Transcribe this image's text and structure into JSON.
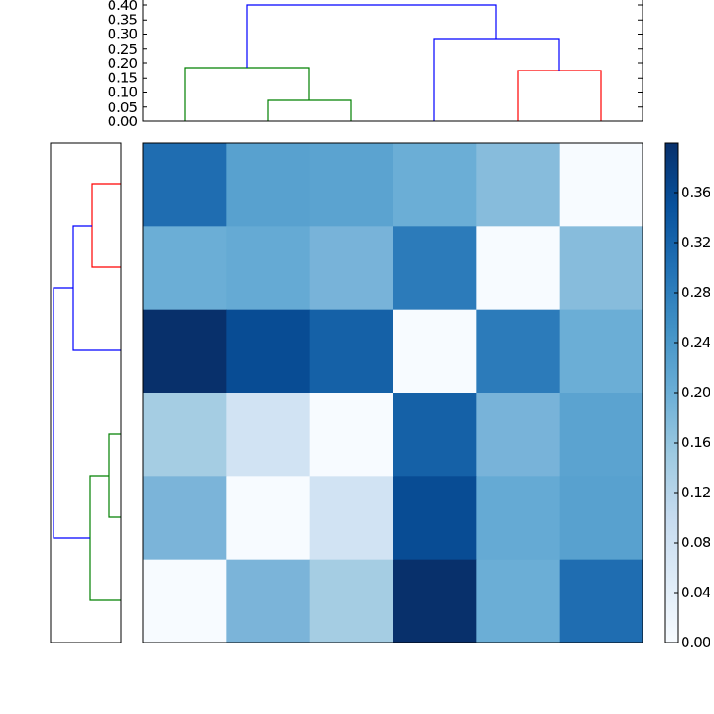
{
  "chart_data": [
    {
      "type": "dendrogram",
      "position": "top",
      "orientation": "vertical",
      "ylim": [
        0,
        0.4
      ],
      "yticks": [
        "0.00",
        "0.05",
        "0.10",
        "0.15",
        "0.20",
        "0.25",
        "0.30",
        "0.35",
        "0.40"
      ],
      "leaves": 6,
      "links": [
        {
          "left": 1,
          "right": 2,
          "height": 0.075,
          "color": "#008000"
        },
        {
          "left": 0,
          "right": "1-2",
          "height": 0.185,
          "color": "#008000"
        },
        {
          "left": 4,
          "right": 5,
          "height": 0.175,
          "color": "#ff0000"
        },
        {
          "left": 3,
          "right": "4-5",
          "height": 0.28,
          "color": "#0000ff"
        },
        {
          "left": "0-1-2",
          "right": "3-4-5",
          "height": 0.4,
          "color": "#0000ff"
        }
      ]
    },
    {
      "type": "dendrogram",
      "position": "left",
      "orientation": "horizontal",
      "leaves": 6,
      "links": [
        {
          "top": 0,
          "bottom": 1,
          "height": 0.175,
          "color": "#ff0000"
        },
        {
          "top": "0-1",
          "bottom": 2,
          "height": 0.28,
          "color": "#0000ff"
        },
        {
          "top": 3,
          "bottom": 4,
          "height": 0.075,
          "color": "#008000"
        },
        {
          "top": "3-4",
          "bottom": 5,
          "height": 0.185,
          "color": "#008000"
        },
        {
          "top": "0-1-2",
          "bottom": "3-4-5",
          "height": 0.4,
          "color": "#0000ff"
        }
      ]
    },
    {
      "type": "heatmap",
      "colormap": "Blues",
      "vmin": 0.0,
      "vmax": 0.4,
      "rows": 6,
      "cols": 6,
      "values": [
        [
          0.31,
          0.22,
          0.22,
          0.19,
          0.16,
          0.0
        ],
        [
          0.19,
          0.2,
          0.17,
          0.28,
          0.0,
          0.16
        ],
        [
          0.4,
          0.36,
          0.33,
          0.0,
          0.28,
          0.19
        ],
        [
          0.12,
          0.07,
          0.0,
          0.33,
          0.17,
          0.22
        ],
        [
          0.17,
          0.0,
          0.07,
          0.36,
          0.2,
          0.22
        ],
        [
          0.0,
          0.17,
          0.12,
          0.4,
          0.19,
          0.31
        ]
      ],
      "colors": [
        [
          "#1f6db1",
          "#58a1cf",
          "#5ba3d0",
          "#6baed6",
          "#87bcdc",
          "#f7fbff"
        ],
        [
          "#6baed6",
          "#65aad4",
          "#78b3d9",
          "#2c7bba",
          "#f7fbff",
          "#87bcdc"
        ],
        [
          "#08306b",
          "#084c94",
          "#1561a7",
          "#f7fbff",
          "#2c7bba",
          "#6baed6"
        ],
        [
          "#a5cde3",
          "#d1e3f3",
          "#f7fbff",
          "#1561a7",
          "#78b3d9",
          "#5ba3d0"
        ],
        [
          "#7bb4d9",
          "#f7fbff",
          "#d1e3f3",
          "#084c94",
          "#65aad4",
          "#58a1cf"
        ],
        [
          "#f7fbff",
          "#7bb4d9",
          "#a5cde3",
          "#08306b",
          "#6baed6",
          "#1f6db1"
        ]
      ]
    },
    {
      "type": "colorbar",
      "colormap": "Blues",
      "range": [
        0.0,
        0.4
      ],
      "ticks": [
        "0.00",
        "0.04",
        "0.08",
        "0.12",
        "0.16",
        "0.20",
        "0.24",
        "0.28",
        "0.32",
        "0.36"
      ]
    }
  ],
  "top_dendrogram": {
    "yticks": [
      "0.00",
      "0.05",
      "0.10",
      "0.15",
      "0.20",
      "0.25",
      "0.30",
      "0.35",
      "0.40"
    ]
  },
  "colorbar": {
    "ticks": [
      "0.00",
      "0.04",
      "0.08",
      "0.12",
      "0.16",
      "0.20",
      "0.24",
      "0.28",
      "0.32",
      "0.36"
    ],
    "top_color": "#08306b",
    "bottom_color": "#f7fbff"
  }
}
